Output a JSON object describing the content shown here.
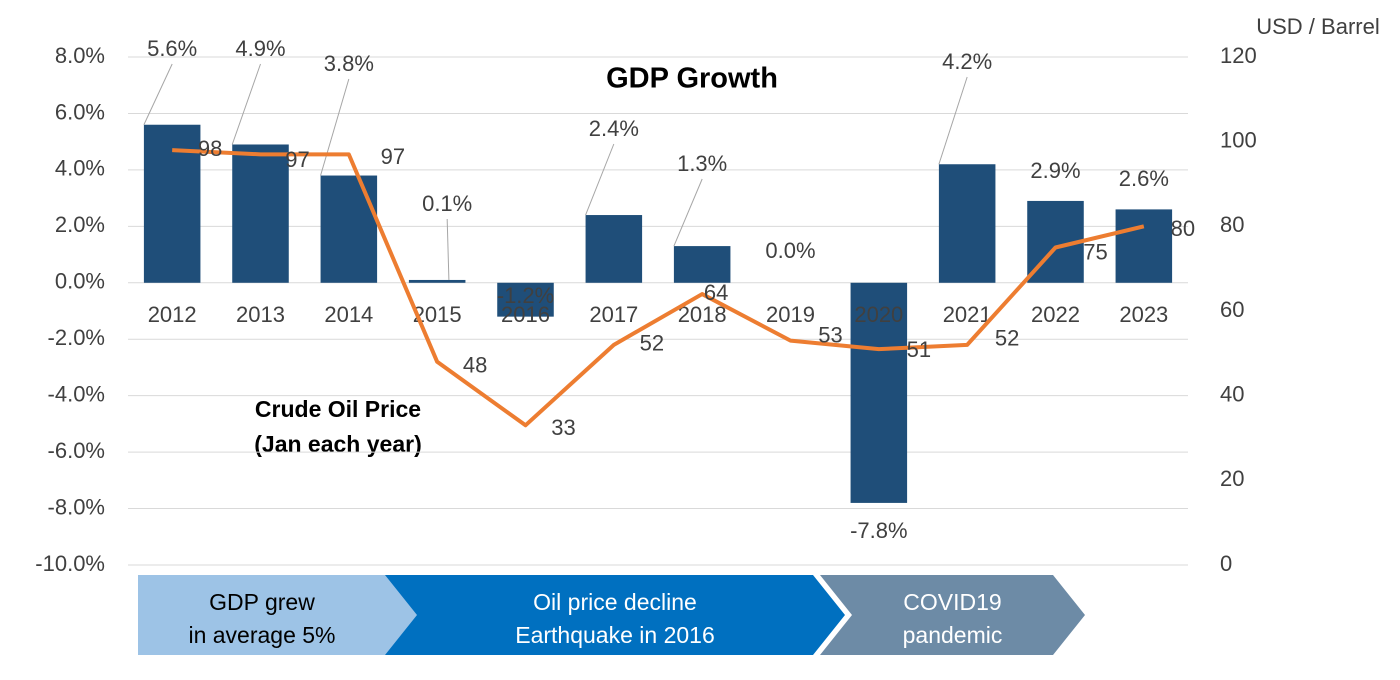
{
  "chart_data": {
    "type": "bar",
    "title": "GDP Growth",
    "annotation": [
      "Crude Oil Price",
      "(Jan each year)"
    ],
    "y2_label": "USD / Barrel",
    "categories": [
      "2012",
      "2013",
      "2014",
      "2015",
      "2016",
      "2017",
      "2018",
      "2019",
      "2020",
      "2021",
      "2022",
      "2023"
    ],
    "series": [
      {
        "type": "bar",
        "color": "#1f4e79",
        "axis": "y",
        "values": [
          5.6,
          4.9,
          3.8,
          0.1,
          -1.2,
          2.4,
          1.3,
          0.0,
          -7.8,
          4.2,
          2.9,
          2.6
        ],
        "value_labels": [
          "5.6%",
          "4.9%",
          "3.8%",
          "0.1%",
          "-1.2%",
          "2.4%",
          "1.3%",
          "0.0%",
          "-7.8%",
          "4.2%",
          "2.9%",
          "2.6%"
        ]
      },
      {
        "type": "line",
        "color": "#ed7d31",
        "axis": "y2",
        "values": [
          98,
          97,
          97,
          48,
          33,
          52,
          64,
          53,
          51,
          52,
          75,
          80
        ]
      }
    ],
    "ylim": [
      -10,
      8
    ],
    "yticks": [
      {
        "value": -10,
        "label": "-10.0%"
      },
      {
        "value": -8,
        "label": "-8.0%"
      },
      {
        "value": -6,
        "label": "-6.0%"
      },
      {
        "value": -4,
        "label": "-4.0%"
      },
      {
        "value": -2,
        "label": "-2.0%"
      },
      {
        "value": 0,
        "label": "0.0%"
      },
      {
        "value": 2,
        "label": "2.0%"
      },
      {
        "value": 4,
        "label": "4.0%"
      },
      {
        "value": 6,
        "label": "6.0%"
      },
      {
        "value": 8,
        "label": "8.0%"
      }
    ],
    "y2lim": [
      0,
      120
    ],
    "y2ticks": [
      0,
      20,
      40,
      60,
      80,
      100,
      120
    ],
    "grid": true,
    "phases": [
      {
        "lines": [
          "GDP grew",
          "in average 5%"
        ],
        "color": "#9dc3e6"
      },
      {
        "lines": [
          "Oil price decline",
          "Earthquake in 2016"
        ],
        "color": "#0070c0"
      },
      {
        "lines": [
          "COVID19",
          "pandemic"
        ],
        "color": "#6d8ba6"
      }
    ]
  }
}
